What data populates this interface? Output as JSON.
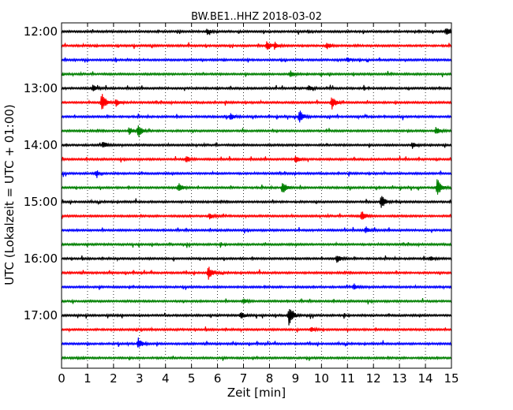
{
  "chart_data": {
    "type": "line",
    "title": "BW.BE1..HHZ 2018-03-02",
    "xlabel": "Zeit  [min]",
    "ylabel": "UTC (Lokalzeit = UTC + 01:00)",
    "xlim": [
      0,
      15
    ],
    "x_ticks": [
      "0",
      "1",
      "2",
      "3",
      "4",
      "5",
      "6",
      "7",
      "8",
      "9",
      "10",
      "11",
      "12",
      "13",
      "14",
      "15"
    ],
    "y_ticks": [
      {
        "label": "12:00",
        "trace": 0
      },
      {
        "label": "13:00",
        "trace": 4
      },
      {
        "label": "14:00",
        "trace": 8
      },
      {
        "label": "15:00",
        "trace": 12
      },
      {
        "label": "16:00",
        "trace": 16
      },
      {
        "label": "17:00",
        "trace": 20
      }
    ],
    "grid": "vertical dotted",
    "colors": [
      "#000000",
      "#ff0000",
      "#0000ff",
      "#008000"
    ],
    "traces": [
      {
        "start": "12:00",
        "events": [
          {
            "t": 5.6,
            "a": 0.25
          },
          {
            "t": 14.8,
            "a": 0.35
          }
        ]
      },
      {
        "start": "12:15",
        "events": [
          {
            "t": 7.9,
            "a": 0.45
          },
          {
            "t": 8.2,
            "a": 0.3
          },
          {
            "t": 10.2,
            "a": 0.3
          }
        ]
      },
      {
        "start": "12:30",
        "events": [
          {
            "t": 11.0,
            "a": 0.2
          }
        ]
      },
      {
        "start": "12:45",
        "events": [
          {
            "t": 8.8,
            "a": 0.3
          }
        ]
      },
      {
        "start": "13:00",
        "events": [
          {
            "t": 1.2,
            "a": 0.3
          },
          {
            "t": 9.5,
            "a": 0.25
          }
        ]
      },
      {
        "start": "13:15",
        "events": [
          {
            "t": 1.55,
            "a": 1.0
          },
          {
            "t": 2.1,
            "a": 0.35
          },
          {
            "t": 10.4,
            "a": 0.6
          }
        ]
      },
      {
        "start": "13:30",
        "events": [
          {
            "t": 6.5,
            "a": 0.3
          },
          {
            "t": 9.15,
            "a": 0.65
          }
        ]
      },
      {
        "start": "13:45",
        "events": [
          {
            "t": 2.6,
            "a": 0.35
          },
          {
            "t": 2.95,
            "a": 0.6
          },
          {
            "t": 14.4,
            "a": 0.35
          }
        ]
      },
      {
        "start": "14:00",
        "events": [
          {
            "t": 1.6,
            "a": 0.3
          },
          {
            "t": 13.5,
            "a": 0.25
          }
        ]
      },
      {
        "start": "14:15",
        "events": [
          {
            "t": 4.8,
            "a": 0.3
          },
          {
            "t": 9.0,
            "a": 0.35
          }
        ]
      },
      {
        "start": "14:30",
        "events": [
          {
            "t": 1.3,
            "a": 0.2
          }
        ]
      },
      {
        "start": "14:45",
        "events": [
          {
            "t": 4.5,
            "a": 0.4
          },
          {
            "t": 8.5,
            "a": 0.6
          },
          {
            "t": 14.45,
            "a": 0.9
          }
        ]
      },
      {
        "start": "15:00",
        "events": [
          {
            "t": 12.3,
            "a": 0.65
          }
        ]
      },
      {
        "start": "15:15",
        "events": [
          {
            "t": 5.7,
            "a": 0.25
          },
          {
            "t": 11.55,
            "a": 0.5
          }
        ]
      },
      {
        "start": "15:30",
        "events": [
          {
            "t": 11.7,
            "a": 0.3
          }
        ]
      },
      {
        "start": "15:45",
        "events": []
      },
      {
        "start": "16:00",
        "events": [
          {
            "t": 10.6,
            "a": 0.35
          },
          {
            "t": 14.2,
            "a": 0.2
          }
        ]
      },
      {
        "start": "16:15",
        "events": [
          {
            "t": 5.65,
            "a": 0.6
          }
        ]
      },
      {
        "start": "16:30",
        "events": [
          {
            "t": 11.25,
            "a": 0.25
          }
        ]
      },
      {
        "start": "16:45",
        "events": [
          {
            "t": 7.0,
            "a": 0.2
          }
        ]
      },
      {
        "start": "17:00",
        "events": [
          {
            "t": 6.9,
            "a": 0.3
          },
          {
            "t": 8.75,
            "a": 1.0
          }
        ]
      },
      {
        "start": "17:15",
        "events": [
          {
            "t": 9.6,
            "a": 0.2
          }
        ]
      },
      {
        "start": "17:30",
        "events": [
          {
            "t": 2.95,
            "a": 0.5
          }
        ]
      },
      {
        "start": "17:45",
        "events": []
      }
    ]
  }
}
